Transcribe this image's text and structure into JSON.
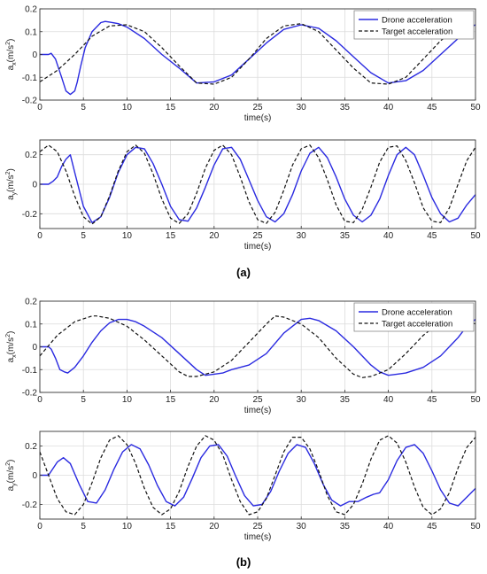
{
  "captions": {
    "a": "(a)",
    "b": "(b)"
  },
  "colors": {
    "drone": "#2a2ae0",
    "target": "#111111",
    "grid": "#dcdcdc",
    "axis": "#333333"
  },
  "chart_data": [
    {
      "id": "a-ax",
      "type": "line",
      "xlim": [
        0,
        50
      ],
      "ylim": [
        -0.2,
        0.2
      ],
      "xticks": [
        0,
        5,
        10,
        15,
        20,
        25,
        30,
        35,
        40,
        45,
        50
      ],
      "yticks": [
        -0.2,
        -0.1,
        0,
        0.1,
        0.2
      ],
      "xlabel": "time(s)",
      "ylabel": "a_x(m/s^2)",
      "grid": true,
      "legend_position": "top-right",
      "series": [
        {
          "name": "Drone acceleration",
          "style": "solid",
          "x": [
            0,
            1,
            1.3,
            1.8,
            2.5,
            3,
            3.5,
            4,
            4.3,
            4.7,
            5.2,
            6,
            7,
            7.5,
            8,
            9,
            10,
            12,
            14,
            16,
            18,
            20,
            22,
            24,
            26,
            28,
            30,
            32,
            34,
            36,
            38,
            40,
            42,
            44,
            46,
            48,
            49,
            50
          ],
          "y": [
            0,
            0,
            0.005,
            -0.02,
            -0.1,
            -0.16,
            -0.175,
            -0.16,
            -0.12,
            -0.05,
            0.03,
            0.1,
            0.14,
            0.145,
            0.142,
            0.135,
            0.12,
            0.07,
            0,
            -0.06,
            -0.125,
            -0.12,
            -0.09,
            -0.02,
            0.05,
            0.11,
            0.13,
            0.115,
            0.06,
            -0.01,
            -0.08,
            -0.125,
            -0.115,
            -0.07,
            0,
            0.07,
            0.11,
            0.13
          ]
        },
        {
          "name": "Target acceleration",
          "style": "dashed",
          "x": [
            0,
            2,
            4,
            6,
            8,
            10,
            12,
            14,
            16,
            18,
            20,
            22,
            24,
            26,
            28,
            30,
            32,
            34,
            36,
            38,
            40,
            42,
            44,
            46,
            48,
            50
          ],
          "y": [
            -0.12,
            -0.07,
            0.0,
            0.08,
            0.125,
            0.13,
            0.1,
            0.03,
            -0.05,
            -0.125,
            -0.13,
            -0.1,
            -0.02,
            0.07,
            0.125,
            0.135,
            0.1,
            0.02,
            -0.06,
            -0.125,
            -0.13,
            -0.1,
            -0.02,
            0.06,
            0.12,
            0.13
          ]
        }
      ]
    },
    {
      "id": "a-ay",
      "type": "line",
      "xlim": [
        0,
        50
      ],
      "ylim": [
        -0.3,
        0.3
      ],
      "xticks": [
        0,
        5,
        10,
        15,
        20,
        25,
        30,
        35,
        40,
        45,
        50
      ],
      "yticks": [
        -0.2,
        0,
        0.2
      ],
      "xlabel": "time(s)",
      "ylabel": "a_y(m/s^2)",
      "grid": true,
      "series": [
        {
          "name": "Drone acceleration",
          "style": "solid",
          "x": [
            0,
            1,
            1.5,
            2,
            2.5,
            3,
            3.5,
            4,
            5,
            6,
            7,
            8,
            9,
            10,
            11,
            12,
            13,
            14,
            15,
            16,
            17,
            18,
            19,
            20,
            21,
            22,
            23,
            24,
            25,
            26,
            27,
            28,
            29,
            30,
            31,
            32,
            33,
            34,
            35,
            36,
            37,
            38,
            39,
            40,
            41,
            42,
            43,
            44,
            45,
            46,
            47,
            48,
            49,
            50
          ],
          "y": [
            0,
            0,
            0.02,
            0.05,
            0.12,
            0.17,
            0.2,
            0.08,
            -0.15,
            -0.26,
            -0.22,
            -0.09,
            0.08,
            0.2,
            0.25,
            0.24,
            0.14,
            0,
            -0.15,
            -0.24,
            -0.25,
            -0.16,
            -0.02,
            0.13,
            0.24,
            0.25,
            0.17,
            0.03,
            -0.11,
            -0.22,
            -0.255,
            -0.2,
            -0.07,
            0.09,
            0.21,
            0.25,
            0.18,
            0.05,
            -0.1,
            -0.21,
            -0.255,
            -0.21,
            -0.1,
            0.06,
            0.2,
            0.25,
            0.2,
            0.06,
            -0.09,
            -0.2,
            -0.255,
            -0.23,
            -0.14,
            -0.07
          ]
        },
        {
          "name": "Target acceleration",
          "style": "dashed",
          "x": [
            0,
            1,
            2,
            3,
            4,
            5,
            6,
            7,
            8,
            9,
            10,
            11,
            12,
            13,
            14,
            15,
            16,
            17,
            18,
            19,
            20,
            21,
            22,
            23,
            24,
            25,
            26,
            27,
            28,
            29,
            30,
            31,
            32,
            33,
            34,
            35,
            36,
            37,
            38,
            39,
            40,
            41,
            42,
            43,
            44,
            45,
            46,
            47,
            48,
            49,
            50
          ],
          "y": [
            0.22,
            0.265,
            0.22,
            0.09,
            -0.08,
            -0.22,
            -0.27,
            -0.22,
            -0.08,
            0.09,
            0.22,
            0.265,
            0.21,
            0.07,
            -0.1,
            -0.23,
            -0.265,
            -0.2,
            -0.06,
            0.11,
            0.23,
            0.265,
            0.2,
            0.05,
            -0.12,
            -0.24,
            -0.265,
            -0.19,
            -0.04,
            0.13,
            0.24,
            0.265,
            0.18,
            0.03,
            -0.14,
            -0.25,
            -0.26,
            -0.17,
            -0.02,
            0.15,
            0.25,
            0.26,
            0.16,
            0.01,
            -0.16,
            -0.25,
            -0.26,
            -0.16,
            0.0,
            0.16,
            0.25
          ]
        }
      ]
    },
    {
      "id": "b-ax",
      "type": "line",
      "xlim": [
        0,
        50
      ],
      "ylim": [
        -0.2,
        0.2
      ],
      "xticks": [
        0,
        5,
        10,
        15,
        20,
        25,
        30,
        35,
        40,
        45,
        50
      ],
      "yticks": [
        -0.2,
        -0.1,
        0,
        0.1,
        0.2
      ],
      "xlabel": "time(s)",
      "ylabel": "a_x(m/s^2)",
      "grid": true,
      "legend_position": "top-right",
      "series": [
        {
          "name": "Drone acceleration",
          "style": "solid",
          "x": [
            0,
            1,
            1.3,
            1.8,
            2.3,
            2.8,
            3.2,
            4,
            5,
            6,
            7,
            8,
            9,
            10,
            11,
            12,
            14,
            16,
            18,
            19,
            20,
            21,
            22,
            24,
            26,
            28,
            30,
            31,
            32,
            34,
            36,
            38,
            39,
            40,
            41,
            42,
            44,
            46,
            48,
            49,
            50
          ],
          "y": [
            0,
            0,
            -0.01,
            -0.05,
            -0.1,
            -0.11,
            -0.115,
            -0.09,
            -0.04,
            0.02,
            0.07,
            0.105,
            0.12,
            0.12,
            0.11,
            0.09,
            0.04,
            -0.03,
            -0.1,
            -0.125,
            -0.12,
            -0.115,
            -0.1,
            -0.08,
            -0.03,
            0.06,
            0.12,
            0.125,
            0.115,
            0.07,
            0.0,
            -0.08,
            -0.11,
            -0.125,
            -0.12,
            -0.115,
            -0.09,
            -0.04,
            0.04,
            0.09,
            0.12
          ]
        },
        {
          "name": "Target acceleration",
          "style": "dashed",
          "x": [
            0,
            2,
            4,
            6,
            6.5,
            8,
            10,
            12,
            14,
            16,
            17,
            18,
            20,
            22,
            24,
            26,
            27,
            28,
            30,
            32,
            34,
            36,
            37,
            38,
            40,
            42,
            44,
            46,
            47,
            48,
            50
          ],
          "y": [
            -0.04,
            0.05,
            0.11,
            0.135,
            0.135,
            0.125,
            0.09,
            0.03,
            -0.04,
            -0.11,
            -0.13,
            -0.13,
            -0.11,
            -0.06,
            0.02,
            0.1,
            0.135,
            0.13,
            0.1,
            0.04,
            -0.05,
            -0.12,
            -0.135,
            -0.13,
            -0.1,
            -0.03,
            0.05,
            0.11,
            0.135,
            0.13,
            0.1
          ]
        }
      ]
    },
    {
      "id": "b-ay",
      "type": "line",
      "xlim": [
        0,
        50
      ],
      "ylim": [
        -0.3,
        0.3
      ],
      "xticks": [
        0,
        5,
        10,
        15,
        20,
        25,
        30,
        35,
        40,
        45,
        50
      ],
      "yticks": [
        -0.2,
        0,
        0.2
      ],
      "xlabel": "time(s)",
      "ylabel": "a_y(m/s^2)",
      "grid": true,
      "series": [
        {
          "name": "Drone acceleration",
          "style": "solid",
          "x": [
            0,
            1,
            2,
            2.7,
            3.5,
            4.5,
            5.5,
            6.5,
            7.5,
            8.5,
            9.5,
            10.5,
            11.5,
            12.5,
            13.5,
            14.5,
            15.5,
            16.5,
            17.5,
            18.5,
            19.5,
            20.5,
            21.5,
            22.5,
            23.5,
            24.5,
            25.5,
            26.5,
            27.5,
            28.5,
            29.5,
            30.5,
            31.5,
            32.5,
            33.5,
            34.5,
            35.5,
            36.5,
            37.5,
            38.3,
            39,
            40,
            41,
            42,
            43,
            44,
            45,
            46,
            47,
            48,
            49,
            50
          ],
          "y": [
            0,
            0,
            0.09,
            0.12,
            0.08,
            -0.06,
            -0.18,
            -0.19,
            -0.1,
            0.04,
            0.16,
            0.21,
            0.18,
            0.07,
            -0.07,
            -0.18,
            -0.21,
            -0.15,
            -0.02,
            0.12,
            0.2,
            0.21,
            0.13,
            -0.01,
            -0.14,
            -0.21,
            -0.2,
            -0.11,
            0.03,
            0.15,
            0.21,
            0.19,
            0.08,
            -0.06,
            -0.17,
            -0.21,
            -0.18,
            -0.18,
            -0.15,
            -0.13,
            -0.12,
            -0.03,
            0.1,
            0.19,
            0.21,
            0.15,
            0.03,
            -0.1,
            -0.19,
            -0.21,
            -0.15,
            -0.09
          ]
        },
        {
          "name": "Target acceleration",
          "style": "dashed",
          "x": [
            0,
            1,
            2,
            3,
            4,
            5,
            6,
            7,
            8,
            9,
            10,
            11,
            12,
            13,
            14,
            15,
            16,
            17,
            18,
            19,
            20,
            21,
            22,
            23,
            24,
            25,
            26,
            27,
            28,
            29,
            30,
            31,
            32,
            33,
            34,
            35,
            36,
            37,
            38,
            39,
            40,
            41,
            42,
            43,
            44,
            45,
            46,
            47,
            48,
            49,
            50
          ],
          "y": [
            0.16,
            0.0,
            -0.16,
            -0.25,
            -0.27,
            -0.2,
            -0.05,
            0.12,
            0.24,
            0.27,
            0.21,
            0.08,
            -0.09,
            -0.22,
            -0.27,
            -0.23,
            -0.11,
            0.06,
            0.2,
            0.27,
            0.24,
            0.14,
            -0.03,
            -0.18,
            -0.27,
            -0.25,
            -0.16,
            0.0,
            0.16,
            0.26,
            0.26,
            0.18,
            0.03,
            -0.14,
            -0.25,
            -0.27,
            -0.2,
            -0.06,
            0.11,
            0.24,
            0.27,
            0.22,
            0.09,
            -0.08,
            -0.22,
            -0.27,
            -0.23,
            -0.12,
            0.05,
            0.19,
            0.26
          ]
        }
      ]
    }
  ]
}
